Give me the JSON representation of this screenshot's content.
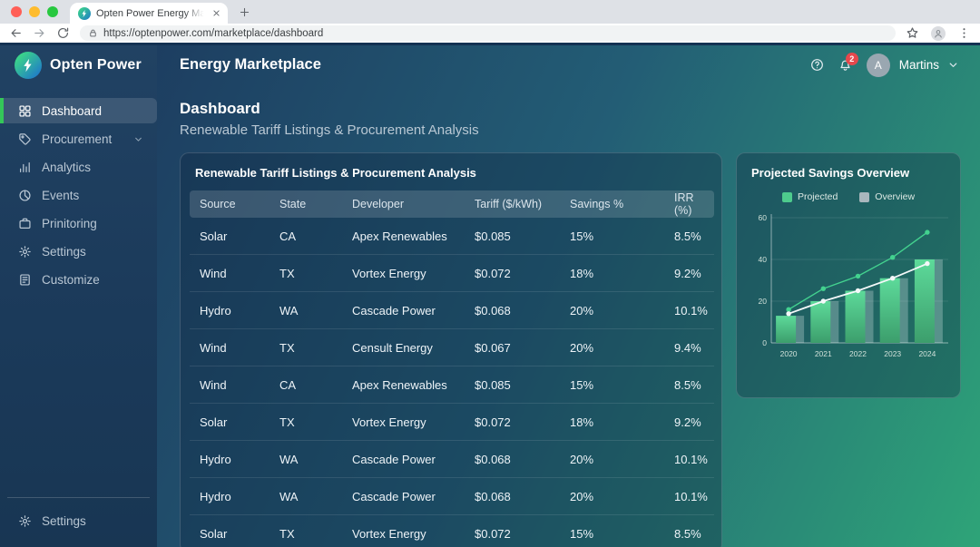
{
  "browser": {
    "tab_title": "Opten Power Energy Marketp",
    "url": "https://optenpower.com/marketplace/dashboard"
  },
  "sidebar": {
    "logo_text": "Opten Power",
    "items": [
      {
        "label": "Dashboard",
        "icon": "grid",
        "active": true
      },
      {
        "label": "Procurement",
        "icon": "tag",
        "chevron": true
      },
      {
        "label": "Analytics",
        "icon": "bar-chart"
      },
      {
        "label": "Events",
        "icon": "pie-chart"
      },
      {
        "label": "Prinitoring",
        "icon": "briefcase"
      },
      {
        "label": "Settings",
        "icon": "gear"
      },
      {
        "label": "Customize",
        "icon": "document"
      }
    ],
    "footer": {
      "label": "Settings",
      "icon": "gear"
    }
  },
  "header": {
    "title": "Energy Marketplace",
    "notification_count": "2",
    "avatar_initial": "A",
    "user_name": "Martins"
  },
  "page": {
    "title": "Dashboard",
    "subtitle": "Renewable Tariff Listings & Procurement Analysis"
  },
  "table": {
    "title": "Renewable Tariff Listings & Procurement Analysis",
    "columns": [
      "Source",
      "State",
      "Developer",
      "Tariff ($/kWh)",
      "Savings %",
      "IRR (%)"
    ],
    "rows": [
      [
        "Solar",
        "CA",
        "Apex Renewables",
        "$0.085",
        "15%",
        "8.5%"
      ],
      [
        "Wind",
        "TX",
        "Vortex Energy",
        "$0.072",
        "18%",
        "9.2%"
      ],
      [
        "Hydro",
        "WA",
        "Cascade Power",
        "$0.068",
        "20%",
        "10.1%"
      ],
      [
        "Wind",
        "TX",
        "Censult Energy",
        "$0.067",
        "20%",
        "9.4%"
      ],
      [
        "Wind",
        "CA",
        "Apex Renewables",
        "$0.085",
        "15%",
        "8.5%"
      ],
      [
        "Solar",
        "TX",
        "Vortex Energy",
        "$0.072",
        "18%",
        "9.2%"
      ],
      [
        "Hydro",
        "WA",
        "Cascade Power",
        "$0.068",
        "20%",
        "10.1%"
      ],
      [
        "Hydro",
        "WA",
        "Cascade Power",
        "$0.068",
        "20%",
        "10.1%"
      ],
      [
        "Solar",
        "TX",
        "Vortex Energy",
        "$0.072",
        "15%",
        "8.5%"
      ]
    ]
  },
  "chart_card": {
    "title": "Projected Savings Overview"
  },
  "chart_data": {
    "type": "combo",
    "title": "Projected Savings Overview",
    "categories": [
      "2020",
      "2021",
      "2022",
      "2023",
      "2024"
    ],
    "ylim": [
      0,
      60
    ],
    "yticks": [
      0,
      20,
      40,
      60
    ],
    "legend": [
      {
        "label": "Projected",
        "color": "#4ecb8d"
      },
      {
        "label": "Overview",
        "color": "#a9b7bd"
      }
    ],
    "series": [
      {
        "name": "Projected",
        "type": "bar",
        "role": "primary",
        "color": "#4ecb8d",
        "values": [
          13,
          20,
          25,
          31,
          40
        ]
      },
      {
        "name": "Overview",
        "type": "bar",
        "role": "overlay",
        "color": "rgba(235,243,245,0.28)",
        "values": [
          13,
          20,
          25,
          31,
          40
        ]
      },
      {
        "name": "Projected trend",
        "type": "line",
        "color": "#43d28f",
        "values": [
          16,
          26,
          32,
          41,
          53
        ]
      },
      {
        "name": "Overview trend",
        "type": "line",
        "color": "#f4f8f9",
        "values": [
          14,
          20,
          25,
          31,
          38
        ]
      }
    ]
  },
  "colors": {
    "accent_green": "#34c759",
    "badge_red": "#e5484d",
    "bar_green": "#4ecb8d"
  }
}
